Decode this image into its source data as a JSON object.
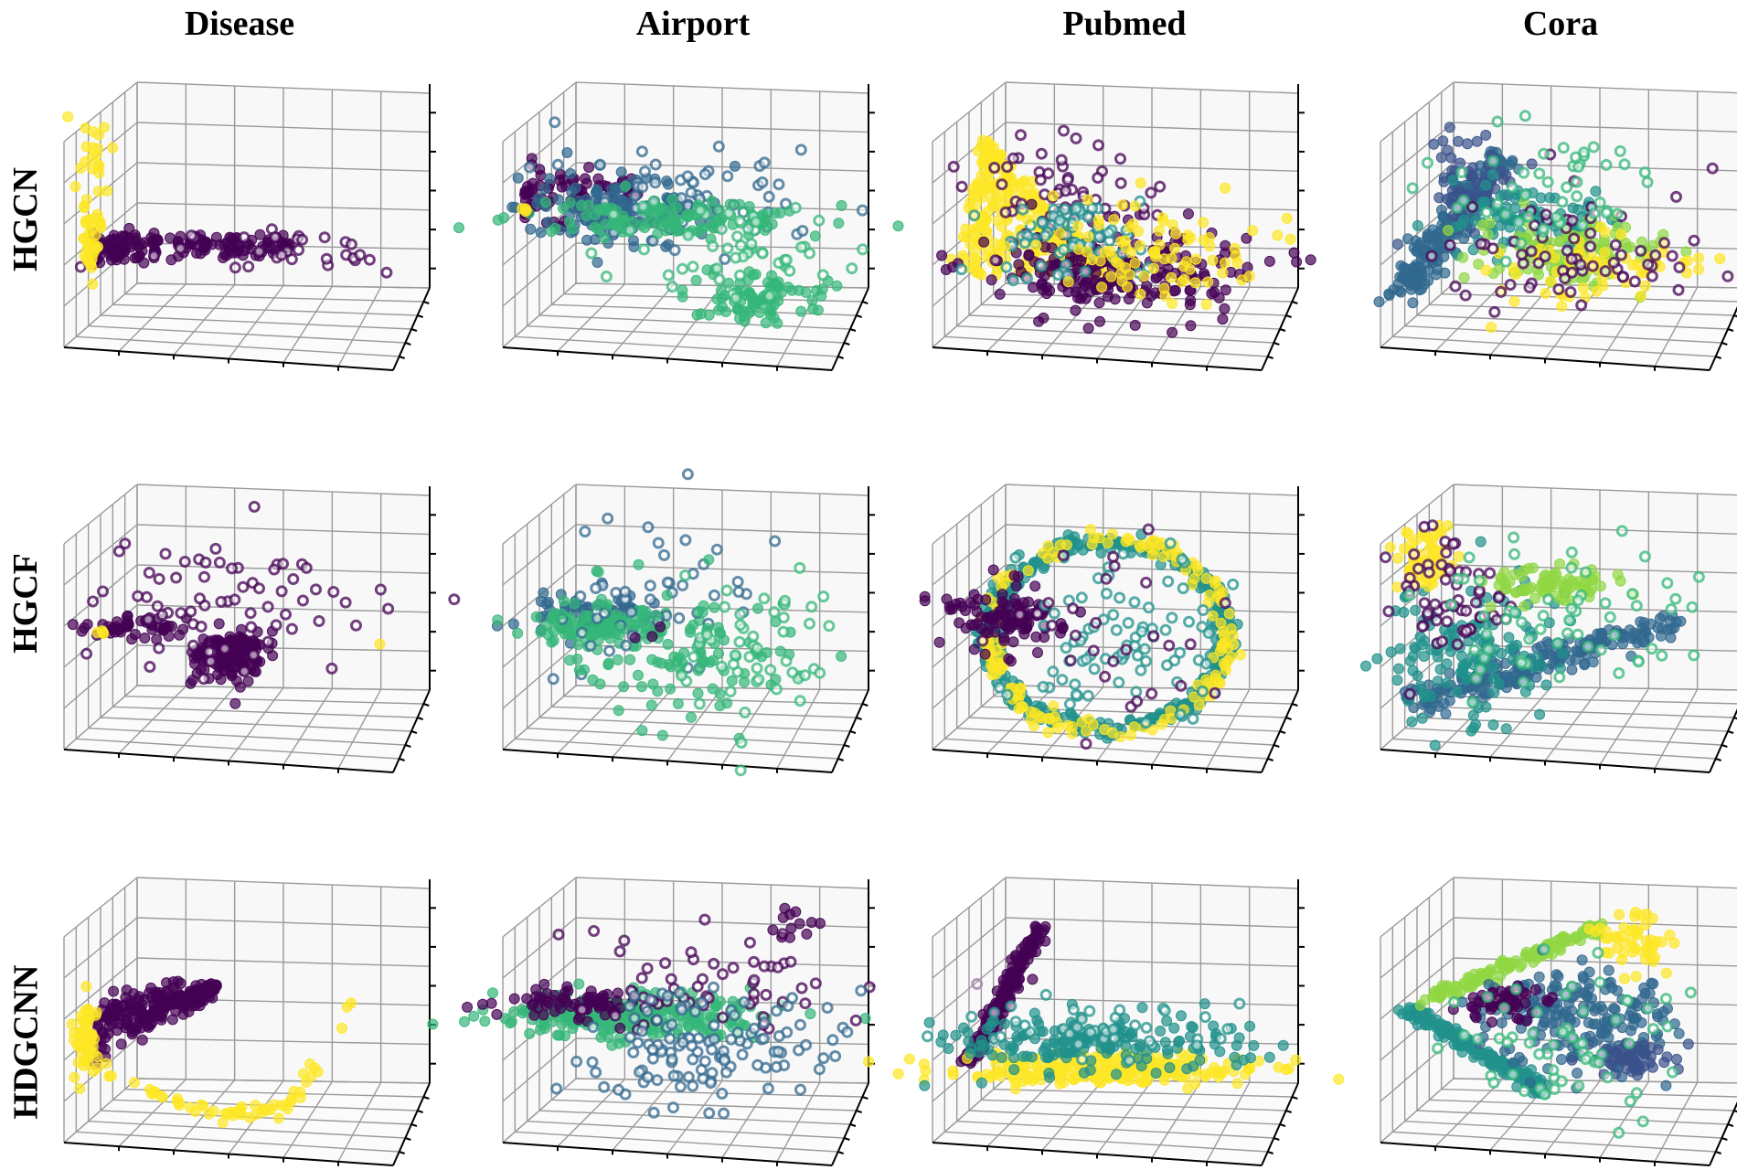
{
  "figure": {
    "columns": [
      "Disease",
      "Airport",
      "Pubmed",
      "Cora"
    ],
    "rows": [
      "HGCN",
      "HGCF",
      "HDGCNN"
    ]
  },
  "colors": {
    "viridis_0": "#440154",
    "viridis_1": "#3b528b",
    "viridis_2": "#31688e",
    "viridis_3": "#21918c",
    "viridis_4": "#35b779",
    "viridis_5": "#90d743",
    "viridis_6": "#fde725",
    "grid": "#9a9a9a",
    "pane": "#f4f4f4",
    "axis": "#000000"
  },
  "chart_data": {
    "type": "scatter",
    "projection": "3d",
    "title": "",
    "colormap": "viridis",
    "tick_labels_visible": false,
    "grid": true,
    "column_titles": [
      "Disease",
      "Airport",
      "Pubmed",
      "Cora"
    ],
    "row_labels": [
      "HGCN",
      "HGCF",
      "HDGCNN"
    ],
    "panels": [
      {
        "row": "HGCN",
        "col": "Disease",
        "clusters": [
          {
            "color": "#440154",
            "cx": 0.3,
            "cy": 0.6,
            "sx": 0.16,
            "sy": 0.03,
            "n": 160,
            "shape": "band",
            "x0": 0.08,
            "x1": 0.62
          },
          {
            "color": "#440154",
            "cx": 0.55,
            "cy": 0.62,
            "sx": 0.22,
            "sy": 0.05,
            "n": 30,
            "ring": true
          },
          {
            "color": "#fde725",
            "cx": 0.08,
            "cy": 0.4,
            "sx": 0.02,
            "sy": 0.25,
            "n": 40,
            "shape": "vline",
            "y0": 0.12,
            "y1": 0.65
          },
          {
            "color": "#fde725",
            "cx": 0.07,
            "cy": 0.62,
            "sx": 0.01,
            "sy": 0.05,
            "n": 20
          }
        ]
      },
      {
        "row": "HGCN",
        "col": "Airport",
        "clusters": [
          {
            "color": "#440154",
            "cx": 0.22,
            "cy": 0.42,
            "sx": 0.09,
            "sy": 0.06,
            "n": 80,
            "shape": "band",
            "x0": 0.06,
            "x1": 0.38
          },
          {
            "color": "#31688e",
            "cx": 0.32,
            "cy": 0.46,
            "sx": 0.14,
            "sy": 0.06,
            "n": 140
          },
          {
            "color": "#31688e",
            "cx": 0.55,
            "cy": 0.4,
            "sx": 0.18,
            "sy": 0.1,
            "n": 60,
            "ring": true
          },
          {
            "color": "#35b779",
            "cx": 0.45,
            "cy": 0.5,
            "sx": 0.2,
            "sy": 0.03,
            "n": 120
          },
          {
            "color": "#35b779",
            "cx": 0.7,
            "cy": 0.78,
            "sx": 0.1,
            "sy": 0.06,
            "n": 90
          },
          {
            "color": "#35b779",
            "cx": 0.65,
            "cy": 0.6,
            "sx": 0.14,
            "sy": 0.1,
            "n": 50,
            "ring": true
          },
          {
            "color": "#fde725",
            "cx": 0.06,
            "cy": 0.48,
            "sx": 0.005,
            "sy": 0.01,
            "n": 4
          }
        ]
      },
      {
        "row": "HGCN",
        "col": "Pubmed",
        "clusters": [
          {
            "color": "#fde725",
            "cx": 0.22,
            "cy": 0.55,
            "sx": 0.1,
            "sy": 0.18,
            "n": 260,
            "shape": "tri"
          },
          {
            "color": "#440154",
            "cx": 0.5,
            "cy": 0.68,
            "sx": 0.18,
            "sy": 0.08,
            "n": 220
          },
          {
            "color": "#440154",
            "cx": 0.35,
            "cy": 0.4,
            "sx": 0.12,
            "sy": 0.1,
            "n": 60,
            "ring": true
          },
          {
            "color": "#21918c",
            "cx": 0.38,
            "cy": 0.58,
            "sx": 0.1,
            "sy": 0.08,
            "n": 70,
            "ring": true
          },
          {
            "color": "#fde725",
            "cx": 0.55,
            "cy": 0.6,
            "sx": 0.15,
            "sy": 0.1,
            "n": 90
          }
        ]
      },
      {
        "row": "HGCN",
        "col": "Cora",
        "clusters": [
          {
            "color": "#31688e",
            "cx": 0.2,
            "cy": 0.5,
            "sx": 0.07,
            "sy": 0.18,
            "n": 200,
            "shape": "diag"
          },
          {
            "color": "#3b528b",
            "cx": 0.25,
            "cy": 0.38,
            "sx": 0.06,
            "sy": 0.1,
            "n": 60
          },
          {
            "color": "#21918c",
            "cx": 0.38,
            "cy": 0.5,
            "sx": 0.12,
            "sy": 0.06,
            "n": 90
          },
          {
            "color": "#90d743",
            "cx": 0.52,
            "cy": 0.62,
            "sx": 0.12,
            "sy": 0.06,
            "n": 120
          },
          {
            "color": "#fde725",
            "cx": 0.58,
            "cy": 0.68,
            "sx": 0.14,
            "sy": 0.06,
            "n": 60
          },
          {
            "color": "#440154",
            "cx": 0.5,
            "cy": 0.62,
            "sx": 0.18,
            "sy": 0.12,
            "n": 70,
            "ring": true
          },
          {
            "color": "#35b779",
            "cx": 0.45,
            "cy": 0.4,
            "sx": 0.16,
            "sy": 0.12,
            "n": 50,
            "ring": true
          }
        ]
      },
      {
        "row": "HGCF",
        "col": "Disease",
        "clusters": [
          {
            "color": "#440154",
            "cx": 0.45,
            "cy": 0.62,
            "sx": 0.05,
            "sy": 0.05,
            "n": 140
          },
          {
            "color": "#440154",
            "cx": 0.2,
            "cy": 0.52,
            "sx": 0.08,
            "sy": 0.02,
            "n": 50
          },
          {
            "color": "#440154",
            "cx": 0.5,
            "cy": 0.45,
            "sx": 0.22,
            "sy": 0.12,
            "n": 70,
            "ring": true
          },
          {
            "color": "#fde725",
            "cx": 0.1,
            "cy": 0.54,
            "sx": 0.01,
            "sy": 0.01,
            "n": 4
          },
          {
            "color": "#fde725",
            "cx": 0.86,
            "cy": 0.58,
            "sx": 0.005,
            "sy": 0.005,
            "n": 1
          }
        ]
      },
      {
        "row": "HGCF",
        "col": "Airport",
        "clusters": [
          {
            "color": "#31688e",
            "cx": 0.22,
            "cy": 0.48,
            "sx": 0.08,
            "sy": 0.04,
            "n": 70
          },
          {
            "color": "#35b779",
            "cx": 0.28,
            "cy": 0.52,
            "sx": 0.1,
            "sy": 0.04,
            "n": 90
          },
          {
            "color": "#31688e",
            "cx": 0.42,
            "cy": 0.4,
            "sx": 0.14,
            "sy": 0.14,
            "n": 50,
            "ring": true
          },
          {
            "color": "#35b779",
            "cx": 0.5,
            "cy": 0.6,
            "sx": 0.18,
            "sy": 0.12,
            "n": 110
          },
          {
            "color": "#35b779",
            "cx": 0.7,
            "cy": 0.58,
            "sx": 0.12,
            "sy": 0.14,
            "n": 50,
            "ring": true
          },
          {
            "color": "#440154",
            "cx": 0.38,
            "cy": 0.5,
            "sx": 0.06,
            "sy": 0.06,
            "n": 3
          }
        ]
      },
      {
        "row": "HGCF",
        "col": "Pubmed",
        "clusters": [
          {
            "color": "#21918c",
            "cx": 0.48,
            "cy": 0.55,
            "sx": 0.0,
            "sy": 0.0,
            "n": 420,
            "shape": "ellipse",
            "rx": 0.32,
            "ry": 0.34,
            "width": 0.05
          },
          {
            "color": "#fde725",
            "cx": 0.48,
            "cy": 0.55,
            "sx": 0.0,
            "sy": 0.0,
            "n": 160,
            "shape": "ellipse",
            "rx": 0.33,
            "ry": 0.35,
            "width": 0.05
          },
          {
            "color": "#440154",
            "cx": 0.2,
            "cy": 0.48,
            "sx": 0.08,
            "sy": 0.06,
            "n": 110
          },
          {
            "color": "#21918c",
            "cx": 0.5,
            "cy": 0.55,
            "sx": 0.14,
            "sy": 0.16,
            "n": 80,
            "ring": true
          },
          {
            "color": "#440154",
            "cx": 0.5,
            "cy": 0.55,
            "sx": 0.16,
            "sy": 0.16,
            "n": 30,
            "ring": true
          }
        ]
      },
      {
        "row": "HGCF",
        "col": "Cora",
        "clusters": [
          {
            "color": "#31688e",
            "cx": 0.55,
            "cy": 0.6,
            "sx": 0.2,
            "sy": 0.05,
            "n": 200,
            "shape": "diag2"
          },
          {
            "color": "#21918c",
            "cx": 0.25,
            "cy": 0.62,
            "sx": 0.12,
            "sy": 0.14,
            "n": 140
          },
          {
            "color": "#fde725",
            "cx": 0.12,
            "cy": 0.28,
            "sx": 0.04,
            "sy": 0.06,
            "n": 60
          },
          {
            "color": "#440154",
            "cx": 0.18,
            "cy": 0.4,
            "sx": 0.08,
            "sy": 0.12,
            "n": 60,
            "ring": true
          },
          {
            "color": "#90d743",
            "cx": 0.45,
            "cy": 0.36,
            "sx": 0.1,
            "sy": 0.03,
            "n": 80
          },
          {
            "color": "#35b779",
            "cx": 0.45,
            "cy": 0.48,
            "sx": 0.2,
            "sy": 0.12,
            "n": 60,
            "ring": true
          }
        ]
      },
      {
        "row": "HDGCNN",
        "col": "Disease",
        "clusters": [
          {
            "color": "#440154",
            "cx": 0.22,
            "cy": 0.5,
            "sx": 0.0,
            "sy": 0.0,
            "n": 220,
            "shape": "cone",
            "x0": 0.07,
            "y0": 0.56,
            "x1": 0.42,
            "y1": 0.4
          },
          {
            "color": "#fde725",
            "cx": 0.06,
            "cy": 0.6,
            "sx": 0.015,
            "sy": 0.06,
            "n": 60
          },
          {
            "color": "#fde725",
            "cx": 0.4,
            "cy": 0.75,
            "sx": 0.0,
            "sy": 0.0,
            "n": 60,
            "shape": "arc"
          }
        ]
      },
      {
        "row": "HDGCNN",
        "col": "Airport",
        "clusters": [
          {
            "color": "#35b779",
            "cx": 0.35,
            "cy": 0.5,
            "sx": 0.18,
            "sy": 0.04,
            "n": 260
          },
          {
            "color": "#440154",
            "cx": 0.2,
            "cy": 0.45,
            "sx": 0.1,
            "sy": 0.03,
            "n": 70
          },
          {
            "color": "#440154",
            "cx": 0.58,
            "cy": 0.38,
            "sx": 0.2,
            "sy": 0.1,
            "n": 60,
            "ring": true
          },
          {
            "color": "#31688e",
            "cx": 0.55,
            "cy": 0.62,
            "sx": 0.18,
            "sy": 0.1,
            "n": 120,
            "ring": true
          },
          {
            "color": "#440154",
            "cx": 0.8,
            "cy": 0.18,
            "sx": 0.03,
            "sy": 0.04,
            "n": 12
          }
        ]
      },
      {
        "row": "HDGCNN",
        "col": "Pubmed",
        "clusters": [
          {
            "color": "#440154",
            "cx": 0.2,
            "cy": 0.45,
            "sx": 0.0,
            "sy": 0.0,
            "n": 180,
            "shape": "line",
            "x0": 0.1,
            "y0": 0.67,
            "x1": 0.3,
            "y1": 0.18
          },
          {
            "color": "#fde725",
            "cx": 0.45,
            "cy": 0.7,
            "sx": 0.2,
            "sy": 0.03,
            "n": 260
          },
          {
            "color": "#21918c",
            "cx": 0.45,
            "cy": 0.6,
            "sx": 0.2,
            "sy": 0.05,
            "n": 180
          },
          {
            "color": "#21918c",
            "cx": 0.45,
            "cy": 0.55,
            "sx": 0.2,
            "sy": 0.05,
            "n": 40,
            "ring": true
          }
        ]
      },
      {
        "row": "HDGCNN",
        "col": "Cora",
        "clusters": [
          {
            "color": "#21918c",
            "cx": 0.3,
            "cy": 0.62,
            "sx": 0.0,
            "sy": 0.0,
            "n": 200,
            "shape": "line",
            "x0": 0.08,
            "y0": 0.48,
            "x1": 0.45,
            "y1": 0.78
          },
          {
            "color": "#90d743",
            "cx": 0.3,
            "cy": 0.3,
            "sx": 0.0,
            "sy": 0.0,
            "n": 120,
            "shape": "line",
            "x0": 0.1,
            "y0": 0.46,
            "x1": 0.6,
            "y1": 0.18
          },
          {
            "color": "#fde725",
            "cx": 0.68,
            "cy": 0.24,
            "sx": 0.05,
            "sy": 0.05,
            "n": 50
          },
          {
            "color": "#31688e",
            "cx": 0.55,
            "cy": 0.52,
            "sx": 0.12,
            "sy": 0.1,
            "n": 200
          },
          {
            "color": "#440154",
            "cx": 0.35,
            "cy": 0.46,
            "sx": 0.06,
            "sy": 0.03,
            "n": 50
          },
          {
            "color": "#3b528b",
            "cx": 0.7,
            "cy": 0.66,
            "sx": 0.06,
            "sy": 0.03,
            "n": 60
          },
          {
            "color": "#35b779",
            "cx": 0.5,
            "cy": 0.6,
            "sx": 0.18,
            "sy": 0.14,
            "n": 60,
            "ring": true
          }
        ]
      }
    ]
  }
}
